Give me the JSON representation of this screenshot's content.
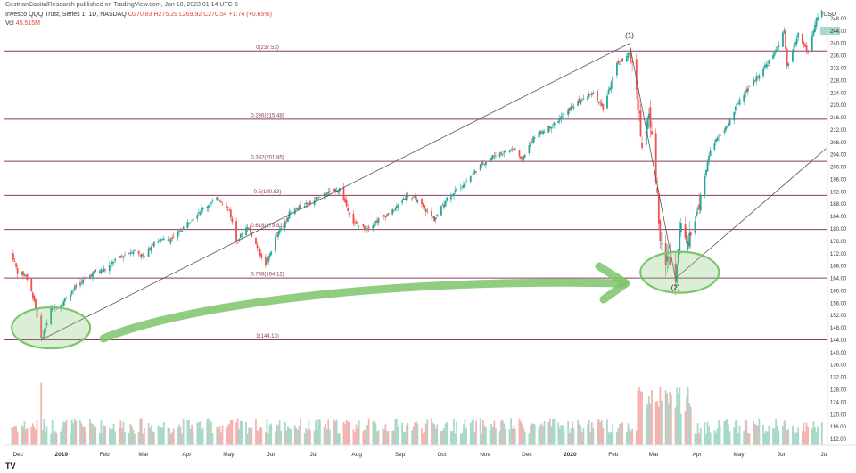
{
  "header": {
    "published": "CestrianCapitalResearch published on TradingView.com, Jan 10, 2023 01:14 UTC-5",
    "symbol": "Invesco QQQ Trust, Series 1, 1D, NASDAQ",
    "ohlc": {
      "o": "O270.83",
      "h": "H275.29",
      "l": "L269.92",
      "c": "C270.54",
      "chg": "+1.74 (+0.65%)"
    },
    "volume_label": "Vol",
    "volume_value": "45.515M",
    "currency": "USD",
    "logo": "TV"
  },
  "colors": {
    "up": "#26a69a",
    "down": "#ef5350",
    "vol_up": "#a8d8c8",
    "vol_down": "#f4b3b0",
    "fib_line": "#8b3a62",
    "green_ann": "#7cc46b",
    "axis_text": "#333333",
    "trend_line": "#555555"
  },
  "chart_data": {
    "type": "candlestick",
    "title": "Invesco QQQ Trust, Series 1, 1D, NASDAQ",
    "ylabel": "USD",
    "ylim": [
      110,
      250
    ],
    "y_ticks": [
      112,
      116,
      120,
      124,
      128,
      132,
      136,
      140,
      144,
      148,
      152,
      156,
      160,
      164,
      168,
      172,
      176,
      180,
      184,
      188,
      192,
      196,
      200,
      204,
      208,
      212,
      216,
      220,
      224,
      228,
      232,
      236,
      240,
      244,
      248,
      252
    ],
    "x_tick_labels": [
      "Dec",
      "2019",
      "Feb",
      "Mar",
      "Apr",
      "May",
      "Jun",
      "Jul",
      "Aug",
      "Sep",
      "Oct",
      "Nov",
      "Dec",
      "2020",
      "Feb",
      "Mar",
      "Apr",
      "May",
      "Jun",
      "Ju"
    ],
    "price_path": [
      [
        "2018-12-03",
        172
      ],
      [
        "2018-12-07",
        166
      ],
      [
        "2018-12-13",
        165
      ],
      [
        "2018-12-19",
        157
      ],
      [
        "2018-12-24",
        144
      ],
      [
        "2018-12-31",
        154
      ],
      [
        "2019-01-08",
        156
      ],
      [
        "2019-01-15",
        160
      ],
      [
        "2019-01-22",
        163
      ],
      [
        "2019-01-31",
        166
      ],
      [
        "2019-02-08",
        167
      ],
      [
        "2019-02-15",
        170
      ],
      [
        "2019-02-28",
        173
      ],
      [
        "2019-03-08",
        171
      ],
      [
        "2019-03-15",
        176
      ],
      [
        "2019-03-29",
        177
      ],
      [
        "2019-04-08",
        182
      ],
      [
        "2019-04-17",
        186
      ],
      [
        "2019-04-30",
        190
      ],
      [
        "2019-05-08",
        186
      ],
      [
        "2019-05-13",
        176
      ],
      [
        "2019-05-21",
        181
      ],
      [
        "2019-06-03",
        168
      ],
      [
        "2019-06-10",
        177
      ],
      [
        "2019-06-20",
        185
      ],
      [
        "2019-07-01",
        188
      ],
      [
        "2019-07-15",
        191
      ],
      [
        "2019-07-26",
        193
      ],
      [
        "2019-08-05",
        182
      ],
      [
        "2019-08-14",
        180
      ],
      [
        "2019-08-23",
        183
      ],
      [
        "2019-09-03",
        186
      ],
      [
        "2019-09-12",
        191
      ],
      [
        "2019-09-20",
        189
      ],
      [
        "2019-10-02",
        183
      ],
      [
        "2019-10-11",
        190
      ],
      [
        "2019-10-24",
        195
      ],
      [
        "2019-11-05",
        201
      ],
      [
        "2019-11-15",
        204
      ],
      [
        "2019-11-29",
        206
      ],
      [
        "2019-12-03",
        202
      ],
      [
        "2019-12-13",
        210
      ],
      [
        "2019-12-27",
        214
      ],
      [
        "2020-01-10",
        220
      ],
      [
        "2020-01-24",
        224
      ],
      [
        "2020-01-31",
        219
      ],
      [
        "2020-02-10",
        233
      ],
      [
        "2020-02-19",
        237
      ],
      [
        "2020-02-24",
        224
      ],
      [
        "2020-02-28",
        207
      ],
      [
        "2020-03-04",
        218
      ],
      [
        "2020-03-09",
        196
      ],
      [
        "2020-03-12",
        178
      ],
      [
        "2020-03-16",
        170
      ],
      [
        "2020-03-20",
        170
      ],
      [
        "2020-03-23",
        165
      ],
      [
        "2020-03-26",
        181
      ],
      [
        "2020-04-01",
        175
      ],
      [
        "2020-04-08",
        186
      ],
      [
        "2020-04-17",
        206
      ],
      [
        "2020-04-30",
        214
      ],
      [
        "2020-05-08",
        222
      ],
      [
        "2020-05-20",
        229
      ],
      [
        "2020-06-01",
        236
      ],
      [
        "2020-06-09",
        244
      ],
      [
        "2020-06-11",
        232
      ],
      [
        "2020-06-19",
        243
      ],
      [
        "2020-06-26",
        237
      ],
      [
        "2020-07-02",
        248
      ],
      [
        "2020-07-06",
        250
      ]
    ],
    "fib_levels": [
      {
        "label": "0(237.53)",
        "value": 237.53
      },
      {
        "label": "0.236(215.48)",
        "value": 215.48
      },
      {
        "label": "0.382(201.85)",
        "value": 201.85
      },
      {
        "label": "0.5(190.83)",
        "value": 190.83
      },
      {
        "label": "0.618(179.81)",
        "value": 179.81
      },
      {
        "label": "0.786(164.12)",
        "value": 164.12
      },
      {
        "label": "1(144.13)",
        "value": 144.13
      }
    ],
    "annotations": [
      {
        "label": "(1)",
        "date": "2020-02-19",
        "value": 240
      },
      {
        "label": "(2)",
        "date": "2020-03-23",
        "value": 162
      }
    ],
    "trend_lines": [
      {
        "from": [
          "2018-12-24",
          144.13
        ],
        "to": [
          "2020-02-19",
          240
        ]
      },
      {
        "from": [
          "2020-02-19",
          240
        ],
        "to": [
          "2020-03-23",
          164
        ]
      },
      {
        "from": [
          "2020-03-23",
          164
        ],
        "to": [
          "2020-07-09",
          206
        ]
      }
    ],
    "highlight_ellipses": [
      {
        "center": [
          "2018-12-31",
          148
        ]
      },
      {
        "center": [
          "2020-03-26",
          166
        ]
      }
    ],
    "volume_spikes": [
      {
        "date": "2018-12-24",
        "value": 3.2
      },
      {
        "date": "2020-03-12",
        "value": 3.0
      },
      {
        "date": "2020-03-16",
        "value": 2.8
      },
      {
        "date": "2020-03-20",
        "value": 2.6
      }
    ]
  }
}
